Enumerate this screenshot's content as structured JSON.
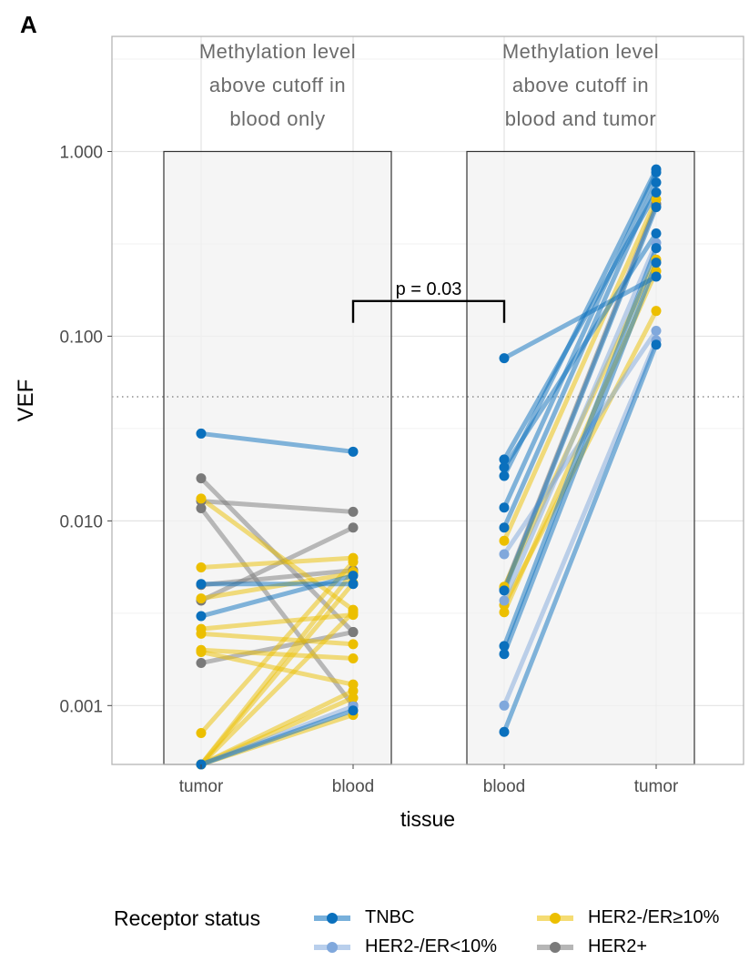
{
  "panel_label": "A",
  "chart_data": {
    "type": "line",
    "ylabel": "VEF",
    "xlabel": "tissue",
    "y_scale": "log10",
    "ylim": [
      0.00048,
      4.2
    ],
    "y_ticks": [
      "1.000",
      "0.100",
      "0.010",
      "0.001"
    ],
    "y_tick_values": [
      1,
      0.1,
      0.01,
      0.001
    ],
    "cutoff_line": 0.047,
    "grid": true,
    "facets": [
      {
        "title_lines": [
          "Methylation level",
          "above cutoff in",
          "blood only"
        ],
        "x_categories": [
          "tumor",
          "blood"
        ]
      },
      {
        "title_lines": [
          "Methylation level",
          "above cutoff in",
          "blood and tumor"
        ],
        "x_categories": [
          "blood",
          "tumor"
        ]
      }
    ],
    "annotation": {
      "text": "p = 0.03",
      "between": [
        "blood only: blood",
        "blood and tumor: blood"
      ],
      "y": 0.155
    },
    "legend": {
      "title": "Receptor status",
      "position": "bottom",
      "entries": [
        {
          "label": "TNBC",
          "color": "#0a70bd"
        },
        {
          "label": "HER2-/ER<10%",
          "color": "#80a8dc"
        },
        {
          "label": "HER2-/ER≥10%",
          "color": "#ecbf00"
        },
        {
          "label": "HER2+",
          "color": "#7a7a7a"
        }
      ]
    },
    "series": [
      {
        "name": "TNBC",
        "color": "#0a70bd",
        "blood_only": [
          [
            0.0297,
            0.0237
          ],
          [
            0.00455,
            0.00455
          ],
          [
            0.00305,
            0.00505
          ],
          [
            0.00048,
            0.00094
          ]
        ],
        "blood_and_tumor": [
          [
            0.076,
            0.21
          ],
          [
            0.0215,
            0.6
          ],
          [
            0.0195,
            0.36
          ],
          [
            0.0175,
            0.8
          ],
          [
            0.0118,
            0.77
          ],
          [
            0.0092,
            0.68
          ],
          [
            0.0042,
            0.5
          ],
          [
            0.0021,
            0.3
          ],
          [
            0.0019,
            0.25
          ],
          [
            0.00072,
            0.09
          ]
        ]
      },
      {
        "name": "HER2-/ER<10%",
        "color": "#80a8dc",
        "blood_only": [
          [
            0.00048,
            0.00099
          ]
        ],
        "blood_and_tumor": [
          [
            0.0066,
            0.107
          ],
          [
            0.0037,
            0.32
          ],
          [
            0.001,
            0.095
          ]
        ]
      },
      {
        "name": "HER2-/ER≥10%",
        "color": "#ecbf00",
        "blood_only": [
          [
            0.0132,
            0.0033
          ],
          [
            0.0056,
            0.0063
          ],
          [
            0.0038,
            0.0052
          ],
          [
            0.0026,
            0.0031
          ],
          [
            0.00245,
            0.00215
          ],
          [
            0.002,
            0.0018
          ],
          [
            0.00195,
            0.0013
          ],
          [
            0.00071,
            0.006
          ],
          [
            0.00048,
            0.0053
          ],
          [
            0.00048,
            0.0046
          ],
          [
            0.00048,
            0.0032
          ],
          [
            0.00048,
            0.0012
          ],
          [
            0.00048,
            0.0011
          ],
          [
            0.00048,
            0.00089
          ]
        ],
        "blood_and_tumor": [
          [
            0.0078,
            0.55
          ],
          [
            0.0044,
            0.26
          ],
          [
            0.0035,
            0.137
          ],
          [
            0.0032,
            0.225
          ]
        ]
      },
      {
        "name": "HER2+",
        "color": "#7a7a7a",
        "blood_only": [
          [
            0.017,
            0.0025
          ],
          [
            0.0128,
            0.0112
          ],
          [
            0.0117,
            0.001
          ],
          [
            0.0045,
            0.0054
          ],
          [
            0.0037,
            0.0092
          ],
          [
            0.0017,
            0.0025
          ]
        ],
        "blood_and_tumor": [
          [
            0.0043,
            0.52
          ]
        ]
      }
    ]
  }
}
